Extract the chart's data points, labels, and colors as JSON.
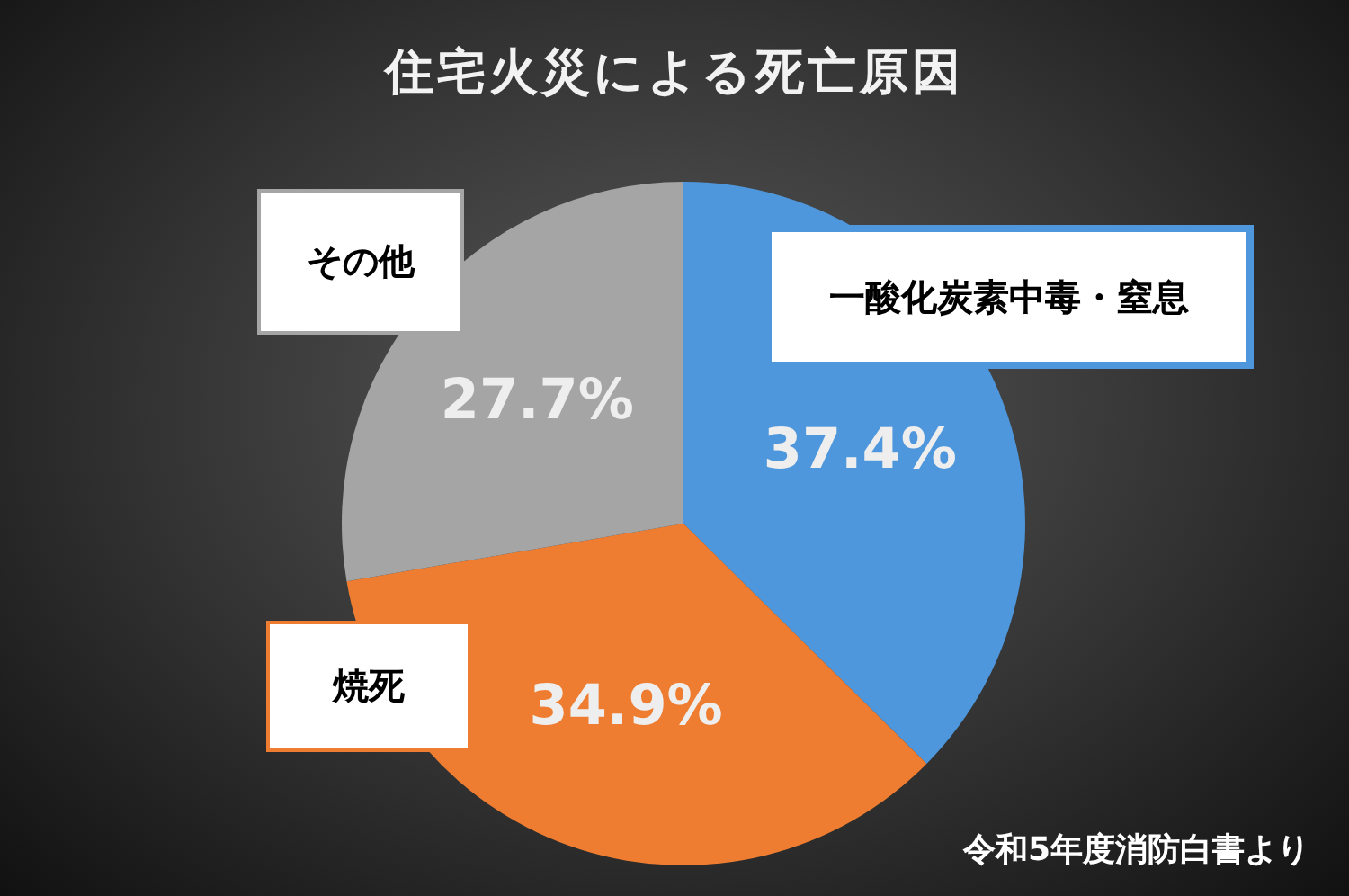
{
  "chart_data": {
    "type": "pie",
    "title": "住宅火災による死亡原因",
    "categories": [
      "一酸化炭素中毒・窒息",
      "焼死",
      "その他"
    ],
    "values": [
      37.4,
      34.9,
      27.7
    ],
    "colors": [
      "#4f97dc",
      "#ee7d31",
      "#a5a5a5"
    ],
    "value_labels": [
      "37.4%",
      "34.9%",
      "27.7%"
    ],
    "annotations": [
      "令和5年度消防白書より"
    ]
  }
}
